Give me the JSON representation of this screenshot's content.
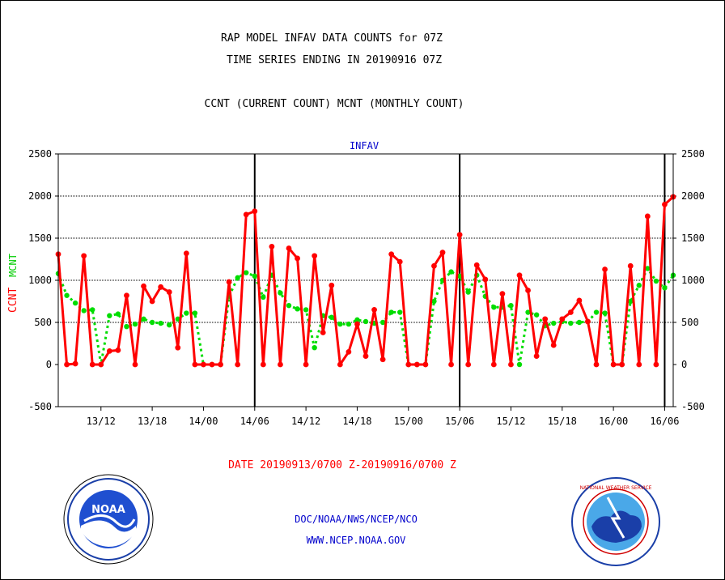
{
  "header": {
    "title_line1": "RAP MODEL INFAV DATA COUNTS for 07Z",
    "title_line2": "TIME SERIES ENDING IN 20190916 07Z",
    "subtitle": "CCNT (CURRENT COUNT) MCNT (MONTHLY COUNT)"
  },
  "footer": {
    "date_range": "DATE 20190913/0700 Z-20190916/0700 Z",
    "org": "DOC/NOAA/NWS/NCEP/NCO",
    "url": "WWW.NCEP.NOAA.GOV",
    "noaa_logo_text": "NOAA",
    "nws_logo_text": "NATIONAL WEATHER SERVICE"
  },
  "chart_data": {
    "type": "line",
    "title": "INFAV",
    "ylabel_left_ccnt": "CCNT",
    "ylabel_left_mcnt": "MCNT",
    "ylim": [
      -500,
      2500
    ],
    "y_ticks": [
      -500,
      0,
      500,
      1000,
      1500,
      2000,
      2500
    ],
    "x_range_hours": [
      0,
      72
    ],
    "x_tick_hours": [
      5,
      11,
      17,
      23,
      29,
      35,
      41,
      47,
      53,
      59,
      65,
      71
    ],
    "x_tick_labels": [
      "13/12",
      "13/18",
      "14/00",
      "14/06",
      "14/12",
      "14/18",
      "15/00",
      "15/06",
      "15/12",
      "15/18",
      "16/00",
      "16/06"
    ],
    "vertical_lines_hours": [
      23,
      47,
      71
    ],
    "grid_y": [
      500,
      1000,
      1500,
      2000
    ],
    "series": [
      {
        "name": "CCNT",
        "color": "#ff0000",
        "style": "solid",
        "values": [
          1310,
          0,
          10,
          1290,
          0,
          0,
          160,
          170,
          820,
          0,
          930,
          750,
          920,
          860,
          200,
          1320,
          0,
          0,
          0,
          0,
          980,
          0,
          1780,
          1820,
          0,
          1400,
          0,
          1380,
          1260,
          0,
          1290,
          380,
          940,
          0,
          150,
          480,
          100,
          650,
          60,
          1310,
          1220,
          0,
          0,
          0,
          1170,
          1330,
          0,
          1540,
          0,
          1180,
          1010,
          0,
          840,
          0,
          1060,
          880,
          100,
          540,
          230,
          540,
          620,
          760,
          510,
          0,
          1130,
          0,
          0,
          1170,
          0,
          1760,
          0,
          1900,
          1990
        ]
      },
      {
        "name": "MCNT",
        "color": "#00dd00",
        "style": "dotted",
        "values": [
          1080,
          820,
          730,
          640,
          650,
          0,
          580,
          600,
          450,
          480,
          540,
          500,
          490,
          470,
          540,
          610,
          610,
          0,
          0,
          0,
          810,
          1030,
          1090,
          1050,
          800,
          1060,
          850,
          700,
          660,
          650,
          200,
          580,
          560,
          480,
          480,
          530,
          510,
          490,
          500,
          620,
          620,
          0,
          0,
          0,
          750,
          1000,
          1100,
          1050,
          860,
          1060,
          810,
          680,
          680,
          700,
          0,
          620,
          590,
          460,
          490,
          510,
          490,
          500,
          510,
          620,
          610,
          0,
          0,
          750,
          940,
          1140,
          990,
          910,
          1060
        ]
      }
    ]
  }
}
